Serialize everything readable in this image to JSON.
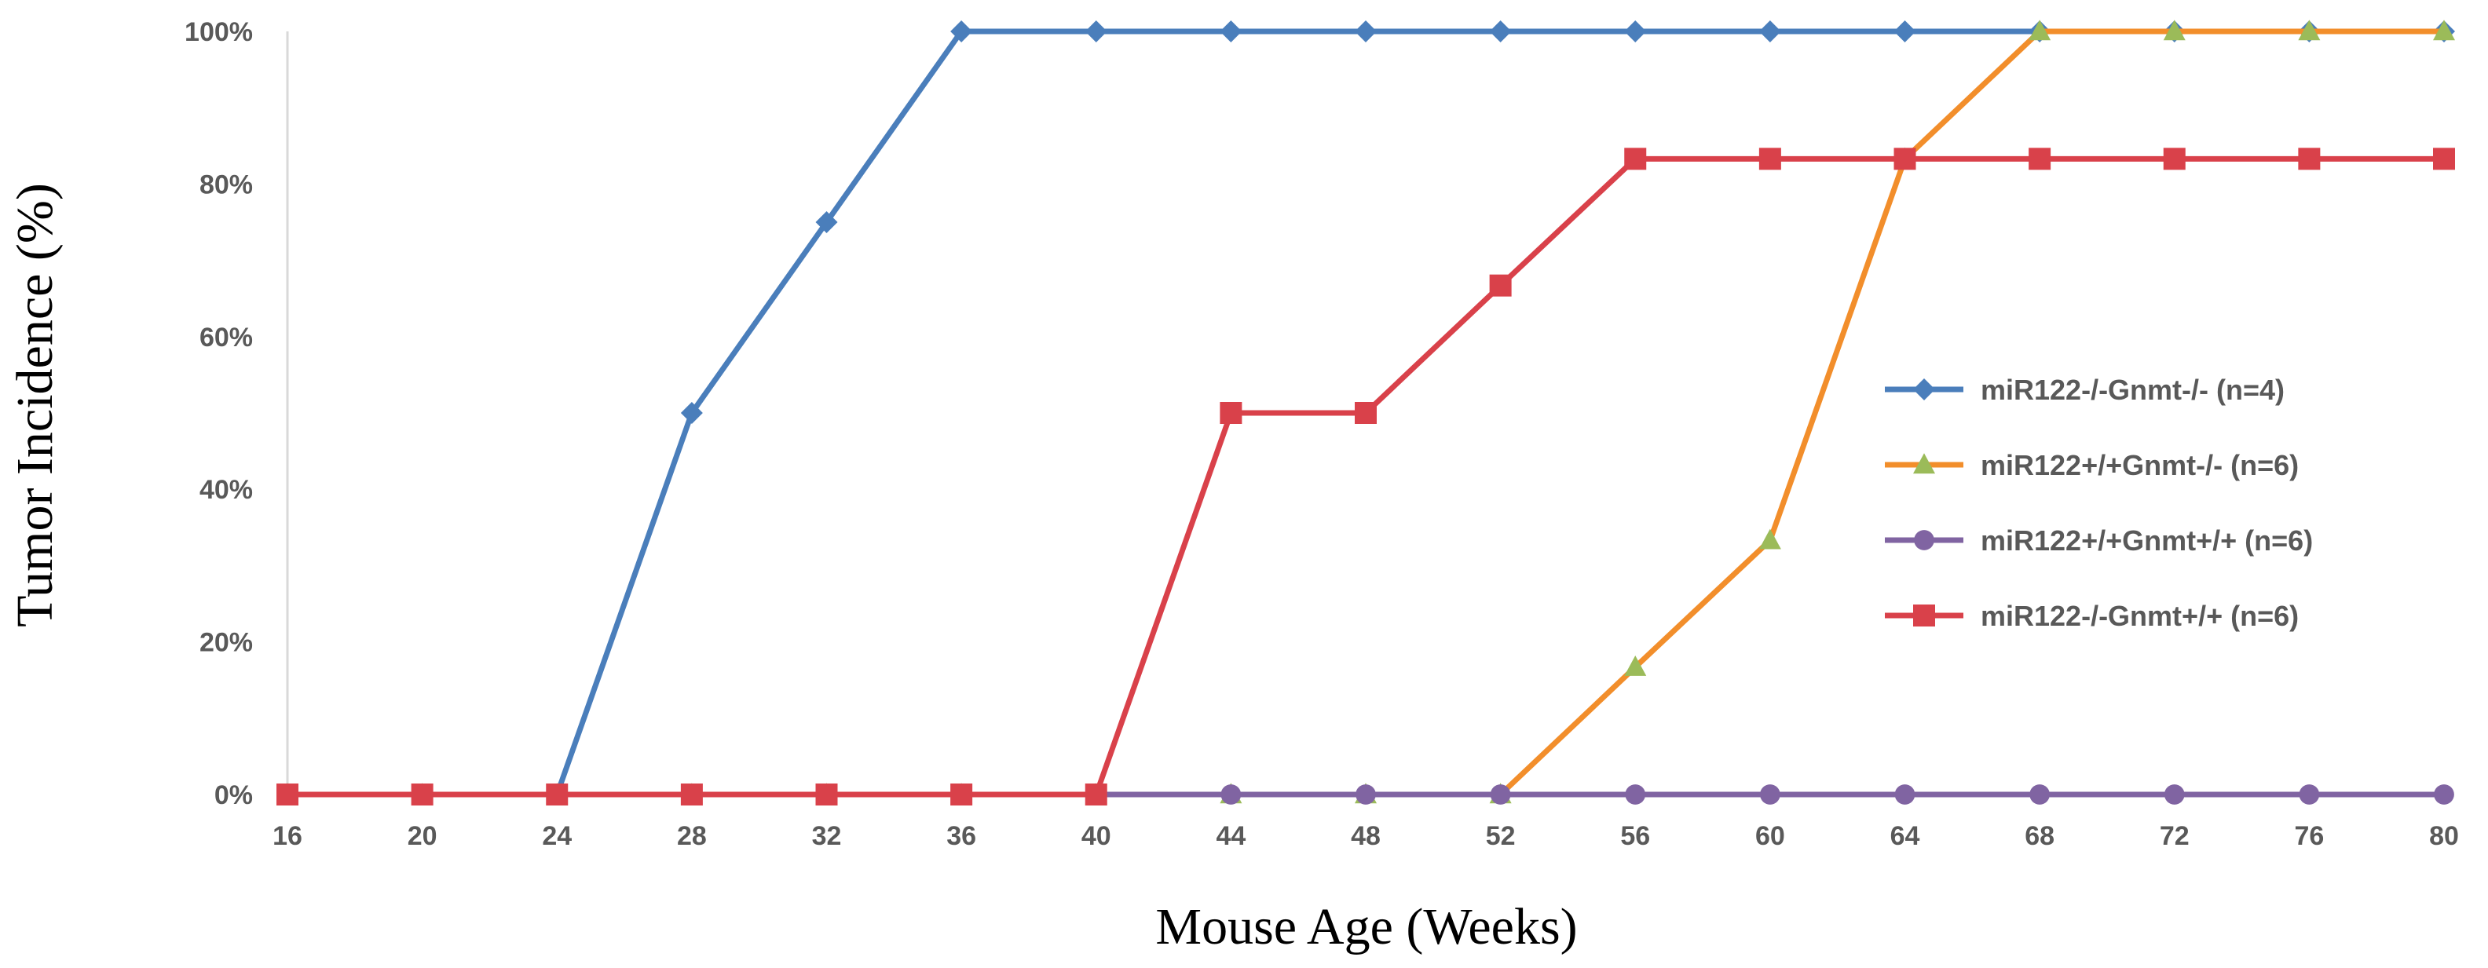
{
  "chart_data": {
    "type": "line",
    "title": "",
    "xlabel": "Mouse Age (Weeks)",
    "ylabel": "Tumor Incidence (%)",
    "x": [
      16,
      20,
      24,
      28,
      32,
      36,
      40,
      44,
      48,
      52,
      56,
      60,
      64,
      68,
      72,
      76,
      80
    ],
    "xlim": [
      16,
      80
    ],
    "ylim": [
      0,
      100
    ],
    "yticks": [
      "0%",
      "20%",
      "40%",
      "60%",
      "80%",
      "100%"
    ],
    "grid": false,
    "legend_position": "right",
    "series": [
      {
        "name": "miR122-/-Gnmt-/- (n=4)",
        "line_color": "#4A7EBB",
        "marker_color": "#4A7EBB",
        "marker": "diamond",
        "values": [
          0,
          0,
          0,
          50,
          75,
          100,
          100,
          100,
          100,
          100,
          100,
          100,
          100,
          100,
          100,
          100,
          100
        ]
      },
      {
        "name": "miR122+/+Gnmt-/- (n=6)",
        "line_color": "#F28E2B",
        "marker_color": "#9BBB59",
        "marker": "triangle",
        "values": [
          0,
          0,
          0,
          0,
          0,
          0,
          0,
          0,
          0,
          0,
          16.7,
          33.3,
          83.3,
          100,
          100,
          100,
          100
        ]
      },
      {
        "name": "miR122+/+Gnmt+/+ (n=6)",
        "line_color": "#8064A2",
        "marker_color": "#8064A2",
        "marker": "circle",
        "values": [
          0,
          0,
          0,
          0,
          0,
          0,
          0,
          0,
          0,
          0,
          0,
          0,
          0,
          0,
          0,
          0,
          0
        ]
      },
      {
        "name": "miR122-/-Gnmt+/+ (n=6)",
        "line_color": "#D9414A",
        "marker_color": "#D9414A",
        "marker": "square",
        "values": [
          0,
          0,
          0,
          0,
          0,
          0,
          0,
          50,
          50,
          66.7,
          83.3,
          83.3,
          83.3,
          83.3,
          83.3,
          83.3,
          83.3
        ]
      }
    ]
  }
}
